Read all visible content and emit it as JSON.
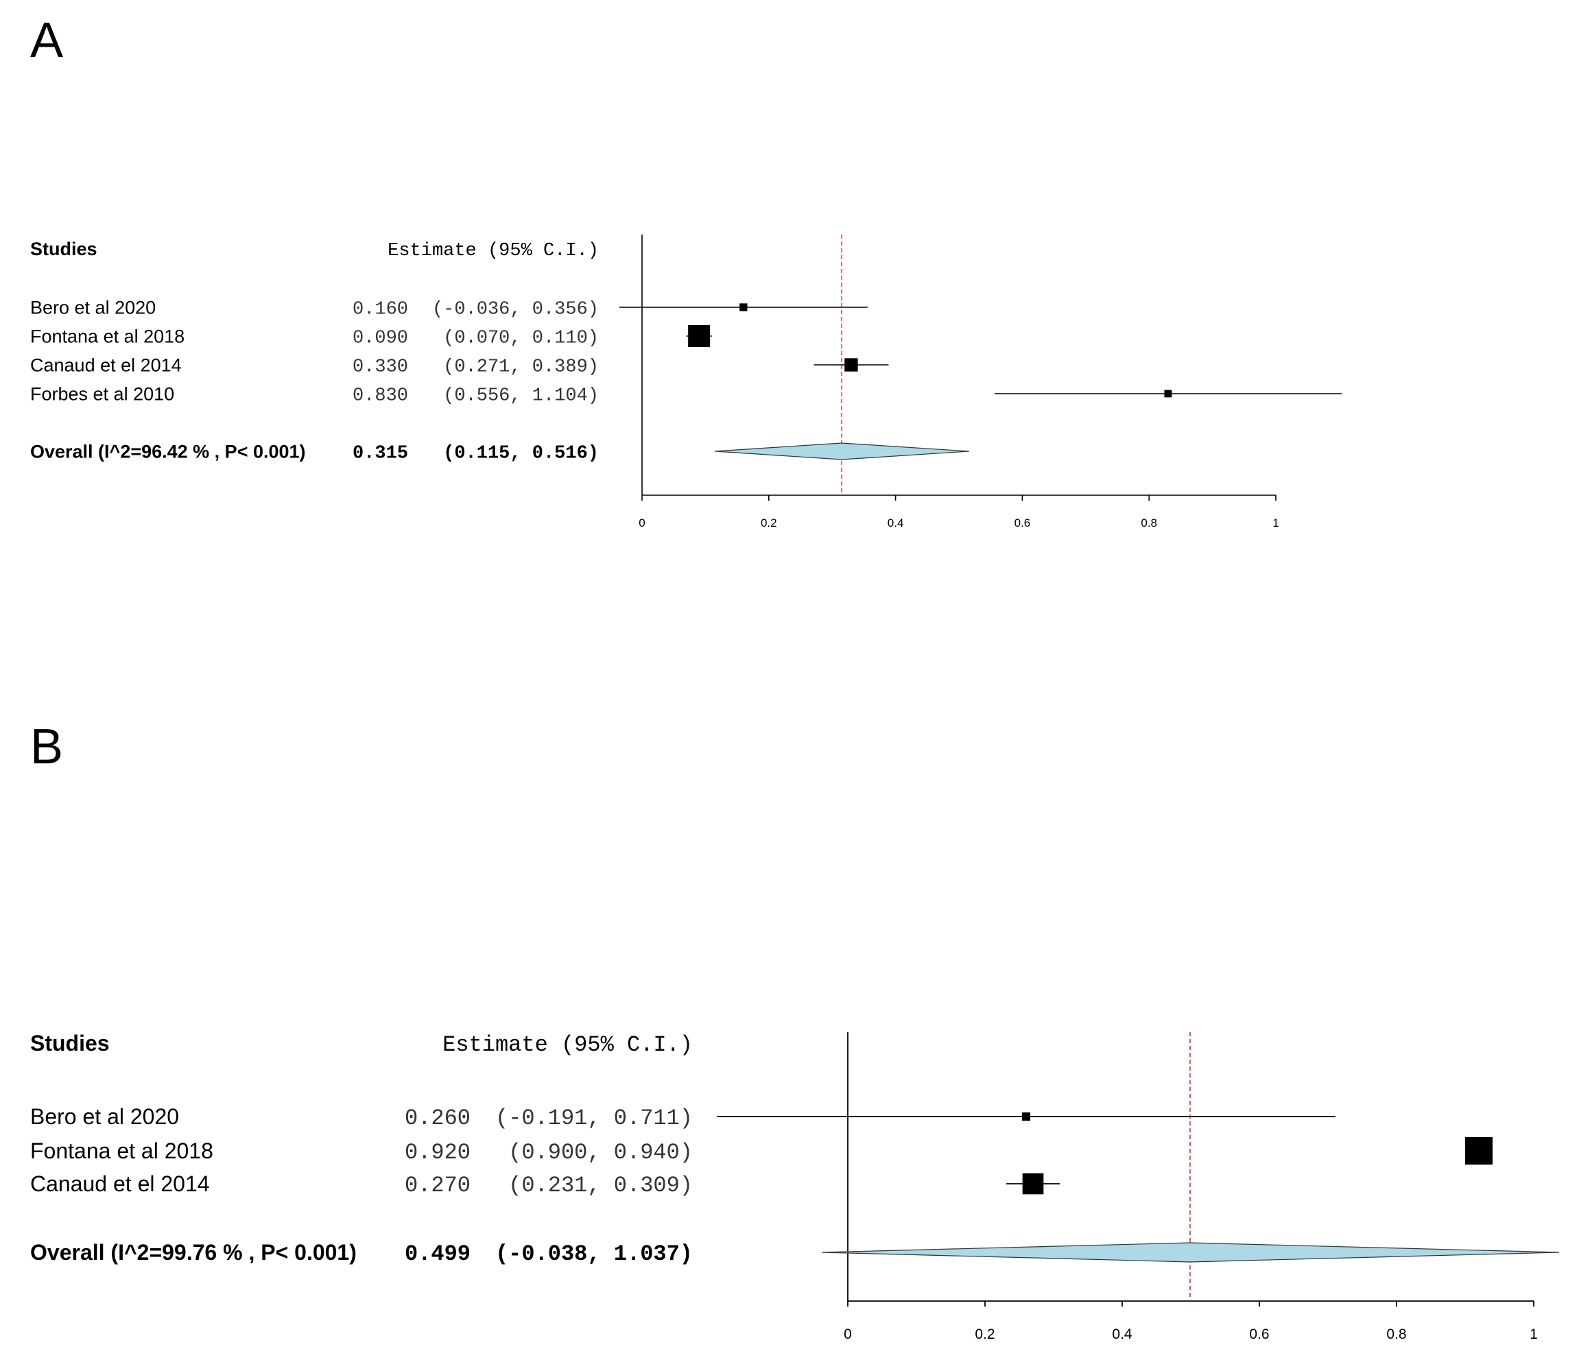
{
  "chart_data": [
    {
      "panel": "A",
      "type": "forest",
      "header_studies": "Studies",
      "header_estimate": "Estimate (95% C.I.)",
      "studies": [
        {
          "label": "Bero et al 2020",
          "estimate": 0.16,
          "lower": -0.036,
          "upper": 0.356,
          "estimate_text": "0.160",
          "ci_text": "(-0.036, 0.356)",
          "weight": 0.1
        },
        {
          "label": "Fontana et al 2018",
          "estimate": 0.09,
          "lower": 0.07,
          "upper": 0.11,
          "estimate_text": "0.090",
          "ci_text": "(0.070, 0.110)",
          "weight": 1.0
        },
        {
          "label": "Canaud et el 2014",
          "estimate": 0.33,
          "lower": 0.271,
          "upper": 0.389,
          "estimate_text": "0.330",
          "ci_text": "(0.271, 0.389)",
          "weight": 0.45
        },
        {
          "label": "Forbes et al 2010",
          "estimate": 0.83,
          "lower": 0.556,
          "upper": 1.104,
          "estimate_text": "0.830",
          "ci_text": "(0.556, 1.104)",
          "weight": 0.08
        }
      ],
      "overall": {
        "label": "Overall (I^2=96.42 % , P< 0.001)",
        "estimate": 0.315,
        "lower": 0.115,
        "upper": 0.516,
        "estimate_text": "0.315",
        "ci_text": "(0.115, 0.516)"
      },
      "xlim": [
        0,
        1
      ],
      "ticks": [
        "0",
        "0.2",
        "0.4",
        "0.6",
        "0.8",
        "1"
      ],
      "tick_values": [
        0,
        0.2,
        0.4,
        0.6,
        0.8,
        1
      ]
    },
    {
      "panel": "B",
      "type": "forest",
      "header_studies": "Studies",
      "header_estimate": "Estimate (95% C.I.)",
      "studies": [
        {
          "label": "Bero et al 2020",
          "estimate": 0.26,
          "lower": -0.191,
          "upper": 0.711,
          "estimate_text": "0.260",
          "ci_text": "(-0.191, 0.711)",
          "weight": 0.1
        },
        {
          "label": "Fontana et al 2018",
          "estimate": 0.92,
          "lower": 0.9,
          "upper": 0.94,
          "estimate_text": "0.920",
          "ci_text": "(0.900, 0.940)",
          "weight": 1.0
        },
        {
          "label": "Canaud et el 2014",
          "estimate": 0.27,
          "lower": 0.231,
          "upper": 0.309,
          "estimate_text": "0.270",
          "ci_text": "(0.231, 0.309)",
          "weight": 0.7
        }
      ],
      "overall": {
        "label": "Overall (I^2=99.76 % , P< 0.001)",
        "estimate": 0.499,
        "lower": -0.038,
        "upper": 1.037,
        "estimate_text": "0.499",
        "ci_text": "(-0.038, 1.037)"
      },
      "xlim": [
        0,
        1
      ],
      "ticks": [
        "0",
        "0.2",
        "0.4",
        "0.6",
        "0.8",
        "1"
      ],
      "tick_values": [
        0,
        0.2,
        0.4,
        0.6,
        0.8,
        1
      ]
    }
  ],
  "panels": {
    "a_letter": "A",
    "b_letter": "B"
  },
  "colors": {
    "diamond_fill": "#ADD8E6",
    "reference_line": "#E8413C",
    "ink": "#000000"
  }
}
